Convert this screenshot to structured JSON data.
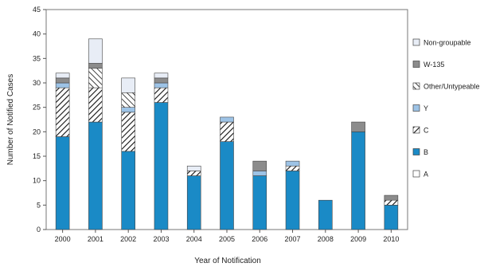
{
  "chart_data": {
    "type": "bar",
    "stacked": true,
    "title": "",
    "xlabel": "Year of Notification",
    "ylabel": "Number of Notified Cases",
    "ylim": [
      0,
      45
    ],
    "yticks": [
      0,
      5,
      10,
      15,
      20,
      25,
      30,
      35,
      40,
      45
    ],
    "grid": false,
    "legend_position": "right",
    "categories": [
      "2000",
      "2001",
      "2002",
      "2003",
      "2004",
      "2005",
      "2006",
      "2007",
      "2008",
      "2009",
      "2010"
    ],
    "series": [
      {
        "name": "B",
        "color": "#1a8ac6",
        "pattern": "solid",
        "values": [
          19,
          22,
          16,
          26,
          11,
          18,
          11,
          12,
          6,
          20,
          5
        ]
      },
      {
        "name": "C",
        "color": "#ffffff",
        "pattern": "hatch",
        "values": [
          10,
          7,
          8,
          3,
          1,
          4,
          0,
          1,
          0,
          0,
          1
        ]
      },
      {
        "name": "Y",
        "color": "#9dc3e6",
        "pattern": "solid",
        "values": [
          1,
          0,
          1,
          1,
          0,
          1,
          1,
          1,
          0,
          0,
          0
        ]
      },
      {
        "name": "Other/Untypeable",
        "color": "#ffffff",
        "pattern": "crosshatch",
        "values": [
          0,
          4,
          3,
          0,
          0,
          0,
          0,
          0,
          0,
          0,
          0
        ]
      },
      {
        "name": "W-135",
        "color": "#8c8c8c",
        "pattern": "solid",
        "values": [
          1,
          1,
          0,
          1,
          0,
          0,
          2,
          0,
          0,
          2,
          1
        ]
      },
      {
        "name": "Non-groupable",
        "color": "#e8edf6",
        "pattern": "solid",
        "values": [
          1,
          5,
          3,
          1,
          1,
          0,
          0,
          0,
          0,
          0,
          0
        ]
      }
    ],
    "legend": [
      {
        "name": "Non-groupable",
        "color": "#e8edf6",
        "pattern": "solid"
      },
      {
        "name": "W-135",
        "color": "#8c8c8c",
        "pattern": "solid"
      },
      {
        "name": "Other/Untypeable",
        "color": "#ffffff",
        "pattern": "crosshatch"
      },
      {
        "name": "Y",
        "color": "#9dc3e6",
        "pattern": "solid"
      },
      {
        "name": "C",
        "color": "#ffffff",
        "pattern": "hatch"
      },
      {
        "name": "B",
        "color": "#1a8ac6",
        "pattern": "solid"
      },
      {
        "name": "A",
        "color": "#ffffff",
        "pattern": "solid"
      }
    ]
  }
}
